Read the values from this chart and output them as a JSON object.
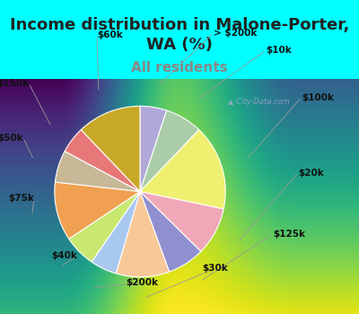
{
  "title": "Income distribution in Malone-Porter,\nWA (%)",
  "subtitle": "All residents",
  "bg_color": "#00FFFF",
  "chart_bg_top": "#e8f8f8",
  "chart_bg_bottom": "#c8ecd0",
  "watermark": "City-Data.com",
  "labels": [
    "> $200k",
    "$10k",
    "$100k",
    "$20k",
    "$125k",
    "$30k",
    "$200k",
    "$40k",
    "$75k",
    "$50k",
    "$150k",
    "$60k"
  ],
  "values": [
    5,
    7,
    16,
    9,
    7,
    10,
    5,
    6,
    11,
    6,
    5,
    12
  ],
  "colors": [
    "#b0a8d8",
    "#aacca8",
    "#f0f070",
    "#f0a8b8",
    "#9090d0",
    "#f8c898",
    "#a8c8f0",
    "#c8e870",
    "#f0a050",
    "#c8b898",
    "#e87878",
    "#c8a828"
  ],
  "title_fontsize": 13,
  "subtitle_fontsize": 11,
  "title_color": "#222222",
  "subtitle_color": "#888888",
  "label_fontsize": 7.5
}
